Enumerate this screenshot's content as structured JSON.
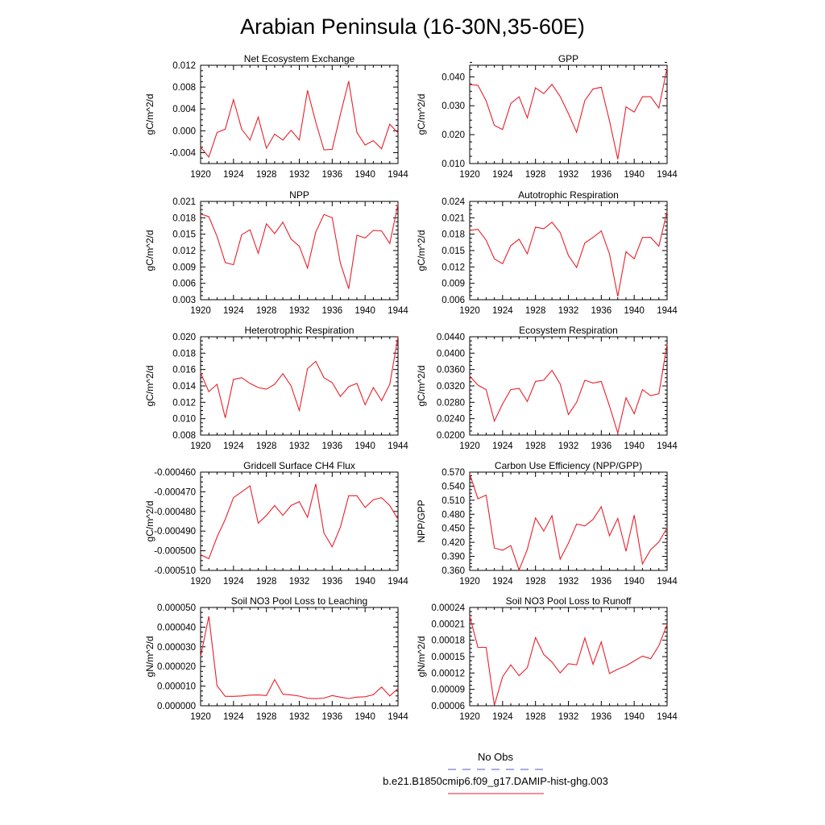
{
  "title": "Arabian Peninsula (16-30N,35-60E)",
  "legend": {
    "entries": [
      {
        "label": "No Obs",
        "color": "#5555cc",
        "style": "dashed"
      },
      {
        "label": "b.e21.B1850cmip6.f09_g17.DAMIP-hist-ghg.003",
        "color": "#e8202a",
        "style": "solid"
      }
    ]
  },
  "colors": {
    "series": "#e8202a",
    "axis": "#000000"
  },
  "chart_data": [
    {
      "type": "line",
      "title": "Net Ecosystem Exchange",
      "ylabel": "gC/m^2/d",
      "xlim": [
        1920,
        1944
      ],
      "ylim": [
        -0.006,
        0.012
      ],
      "xticks": [
        "1920",
        "1924",
        "1928",
        "1932",
        "1936",
        "1940",
        "1944"
      ],
      "yticks": [
        "-0.004",
        "0.000",
        "0.004",
        "0.008",
        "0.012"
      ],
      "x": [
        1920,
        1921,
        1922,
        1923,
        1924,
        1925,
        1926,
        1927,
        1928,
        1929,
        1930,
        1931,
        1932,
        1933,
        1934,
        1935,
        1936,
        1937,
        1938,
        1939,
        1940,
        1941,
        1942,
        1943,
        1944
      ],
      "series": [
        {
          "values": [
            -0.003,
            -0.0048,
            -0.0003,
            0.0003,
            0.0057,
            0.0003,
            -0.0017,
            0.0025,
            -0.0032,
            -0.0006,
            -0.0017,
            0.0001,
            -0.0017,
            0.0074,
            0.0016,
            -0.0035,
            -0.0034,
            0.003,
            0.0091,
            -0.0003,
            -0.0026,
            -0.0018,
            -0.0033,
            0.0012,
            -0.0004
          ]
        }
      ]
    },
    {
      "type": "line",
      "title": "GPP",
      "ylabel": "gC/m^2/d",
      "xlim": [
        1920,
        1944
      ],
      "ylim": [
        0.01,
        0.044
      ],
      "xticks": [
        "1920",
        "1924",
        "1928",
        "1932",
        "1936",
        "1940",
        "1944"
      ],
      "yticks": [
        "0.010",
        "0.020",
        "0.030",
        "0.040"
      ],
      "x": [
        1920,
        1921,
        1922,
        1923,
        1924,
        1925,
        1926,
        1927,
        1928,
        1929,
        1930,
        1931,
        1932,
        1933,
        1934,
        1935,
        1936,
        1937,
        1938,
        1939,
        1940,
        1941,
        1942,
        1943,
        1944
      ],
      "series": [
        {
          "values": [
            0.0373,
            0.0371,
            0.0317,
            0.0232,
            0.0218,
            0.0308,
            0.0331,
            0.0258,
            0.0362,
            0.0342,
            0.0374,
            0.0332,
            0.0273,
            0.0208,
            0.0318,
            0.0358,
            0.0364,
            0.0248,
            0.0115,
            0.0296,
            0.0278,
            0.0331,
            0.0331,
            0.0292,
            0.0431
          ]
        }
      ]
    },
    {
      "type": "line",
      "title": "NPP",
      "ylabel": "gC/m^2/d",
      "xlim": [
        1920,
        1944
      ],
      "ylim": [
        0.003,
        0.021
      ],
      "xticks": [
        "1920",
        "1924",
        "1928",
        "1932",
        "1936",
        "1940",
        "1944"
      ],
      "yticks": [
        "0.003",
        "0.006",
        "0.009",
        "0.012",
        "0.015",
        "0.018",
        "0.021"
      ],
      "x": [
        1920,
        1921,
        1922,
        1923,
        1924,
        1925,
        1926,
        1927,
        1928,
        1929,
        1930,
        1931,
        1932,
        1933,
        1934,
        1935,
        1936,
        1937,
        1938,
        1939,
        1940,
        1941,
        1942,
        1943,
        1944
      ],
      "series": [
        {
          "values": [
            0.0187,
            0.0182,
            0.0146,
            0.0098,
            0.0094,
            0.0149,
            0.0158,
            0.0115,
            0.0169,
            0.0151,
            0.0172,
            0.0141,
            0.0128,
            0.0088,
            0.0154,
            0.0186,
            0.018,
            0.0097,
            0.005,
            0.0148,
            0.0143,
            0.0157,
            0.0156,
            0.0133,
            0.0205
          ]
        }
      ]
    },
    {
      "type": "line",
      "title": "Autotrophic Respiration",
      "ylabel": "gC/m^2/d",
      "xlim": [
        1920,
        1944
      ],
      "ylim": [
        0.006,
        0.024
      ],
      "xticks": [
        "1920",
        "1924",
        "1928",
        "1932",
        "1936",
        "1940",
        "1944"
      ],
      "yticks": [
        "0.006",
        "0.009",
        "0.012",
        "0.015",
        "0.018",
        "0.021",
        "0.024"
      ],
      "x": [
        1920,
        1921,
        1922,
        1923,
        1924,
        1925,
        1926,
        1927,
        1928,
        1929,
        1930,
        1931,
        1932,
        1933,
        1934,
        1935,
        1936,
        1937,
        1938,
        1939,
        1940,
        1941,
        1942,
        1943,
        1944
      ],
      "series": [
        {
          "values": [
            0.0187,
            0.0189,
            0.0169,
            0.0135,
            0.0126,
            0.0159,
            0.0171,
            0.0144,
            0.0193,
            0.019,
            0.0202,
            0.0183,
            0.0141,
            0.0119,
            0.0164,
            0.0174,
            0.0186,
            0.0144,
            0.0066,
            0.0148,
            0.0135,
            0.0174,
            0.0174,
            0.0158,
            0.0222
          ]
        }
      ]
    },
    {
      "type": "line",
      "title": "Heterotrophic Respiration",
      "ylabel": "gC/m^2/d",
      "xlim": [
        1920,
        1944
      ],
      "ylim": [
        0.008,
        0.02
      ],
      "xticks": [
        "1920",
        "1924",
        "1928",
        "1932",
        "1936",
        "1940",
        "1944"
      ],
      "yticks": [
        "0.008",
        "0.010",
        "0.012",
        "0.014",
        "0.016",
        "0.018",
        "0.020"
      ],
      "x": [
        1920,
        1921,
        1922,
        1923,
        1924,
        1925,
        1926,
        1927,
        1928,
        1929,
        1930,
        1931,
        1932,
        1933,
        1934,
        1935,
        1936,
        1937,
        1938,
        1939,
        1940,
        1941,
        1942,
        1943,
        1944
      ],
      "series": [
        {
          "values": [
            0.0156,
            0.0133,
            0.0142,
            0.0101,
            0.0148,
            0.015,
            0.0143,
            0.0138,
            0.0136,
            0.0142,
            0.0155,
            0.014,
            0.011,
            0.0161,
            0.017,
            0.015,
            0.0144,
            0.0127,
            0.0139,
            0.0143,
            0.0117,
            0.0138,
            0.0122,
            0.0142,
            0.02
          ]
        }
      ]
    },
    {
      "type": "line",
      "title": "Ecosystem Respiration",
      "ylabel": "gC/m^2/d",
      "xlim": [
        1920,
        1944
      ],
      "ylim": [
        0.02,
        0.044
      ],
      "xticks": [
        "1920",
        "1924",
        "1928",
        "1932",
        "1936",
        "1940",
        "1944"
      ],
      "yticks": [
        "0.0200",
        "0.0240",
        "0.0280",
        "0.0320",
        "0.0360",
        "0.0400",
        "0.0440"
      ],
      "x": [
        1920,
        1921,
        1922,
        1923,
        1924,
        1925,
        1926,
        1927,
        1928,
        1929,
        1930,
        1931,
        1932,
        1933,
        1934,
        1935,
        1936,
        1937,
        1938,
        1939,
        1940,
        1941,
        1942,
        1943,
        1944
      ],
      "series": [
        {
          "values": [
            0.0344,
            0.0322,
            0.0311,
            0.0234,
            0.0276,
            0.0311,
            0.0314,
            0.0282,
            0.0331,
            0.0334,
            0.0358,
            0.0325,
            0.025,
            0.028,
            0.0334,
            0.0327,
            0.0331,
            0.0271,
            0.0205,
            0.0291,
            0.0252,
            0.0311,
            0.0296,
            0.0301,
            0.0422
          ]
        }
      ]
    },
    {
      "type": "line",
      "title": "Gridcell Surface CH4 Flux",
      "ylabel": "gC/m^2/d",
      "xlim": [
        1920,
        1944
      ],
      "ylim": [
        -0.00051,
        -0.00046
      ],
      "xticks": [
        "1920",
        "1924",
        "1928",
        "1932",
        "1936",
        "1940",
        "1944"
      ],
      "yticks": [
        "-0.000510",
        "-0.000500",
        "-0.000490",
        "-0.000480",
        "-0.000470",
        "-0.000460"
      ],
      "x": [
        1920,
        1921,
        1922,
        1923,
        1924,
        1925,
        1926,
        1927,
        1928,
        1929,
        1930,
        1931,
        1932,
        1933,
        1934,
        1935,
        1936,
        1937,
        1938,
        1939,
        1940,
        1941,
        1942,
        1943,
        1944
      ],
      "series": [
        {
          "values": [
            -0.000502,
            -0.000504,
            -0.000493,
            -0.000484,
            -0.000473,
            -0.00047,
            -0.000467,
            -0.000486,
            -0.000482,
            -0.000477,
            -0.000482,
            -0.000477,
            -0.000475,
            -0.000483,
            -0.000466,
            -0.000491,
            -0.000498,
            -0.000488,
            -0.000472,
            -0.000472,
            -0.000478,
            -0.000474,
            -0.000473,
            -0.000477,
            -0.000484
          ]
        }
      ]
    },
    {
      "type": "line",
      "title": "Carbon Use Efficiency (NPP/GPP)",
      "ylabel": "NPP/GPP",
      "xlim": [
        1920,
        1944
      ],
      "ylim": [
        0.36,
        0.57
      ],
      "xticks": [
        "1920",
        "1924",
        "1928",
        "1932",
        "1936",
        "1940",
        "1944"
      ],
      "yticks": [
        "0.360",
        "0.390",
        "0.420",
        "0.450",
        "0.480",
        "0.510",
        "0.540",
        "0.570"
      ],
      "x": [
        1920,
        1921,
        1922,
        1923,
        1924,
        1925,
        1926,
        1927,
        1928,
        1929,
        1930,
        1931,
        1932,
        1933,
        1934,
        1935,
        1936,
        1937,
        1938,
        1939,
        1940,
        1941,
        1942,
        1943,
        1944
      ],
      "series": [
        {
          "values": [
            0.566,
            0.513,
            0.521,
            0.408,
            0.403,
            0.413,
            0.361,
            0.405,
            0.472,
            0.444,
            0.477,
            0.384,
            0.418,
            0.459,
            0.455,
            0.469,
            0.496,
            0.434,
            0.471,
            0.401,
            0.478,
            0.374,
            0.404,
            0.421,
            0.451
          ]
        }
      ]
    },
    {
      "type": "line",
      "title": "Soil NO3 Pool Loss to Leaching",
      "ylabel": "gN/m^2/d",
      "xlim": [
        1920,
        1944
      ],
      "ylim": [
        0,
        5e-05
      ],
      "xticks": [
        "1920",
        "1924",
        "1928",
        "1932",
        "1936",
        "1940",
        "1944"
      ],
      "yticks": [
        "0.000000",
        "0.000010",
        "0.000020",
        "0.000030",
        "0.000040",
        "0.000050"
      ],
      "x": [
        1920,
        1921,
        1922,
        1923,
        1924,
        1925,
        1926,
        1927,
        1928,
        1929,
        1930,
        1931,
        1932,
        1933,
        1934,
        1935,
        1936,
        1937,
        1938,
        1939,
        1940,
        1941,
        1942,
        1943,
        1944
      ],
      "series": [
        {
          "values": [
            2.5e-05,
            4.55e-05,
            1.02e-05,
            4.8e-06,
            4.8e-06,
            5e-06,
            5.4e-06,
            5.5e-06,
            5.2e-06,
            1.33e-05,
            5.9e-06,
            5.5e-06,
            4.9e-06,
            3.8e-06,
            3.6e-06,
            3.9e-06,
            5.2e-06,
            4.4e-06,
            3.7e-06,
            4.4e-06,
            4.6e-06,
            5.6e-06,
            9.5e-06,
            5e-06,
            8.8e-06
          ]
        }
      ]
    },
    {
      "type": "line",
      "title": "Soil NO3 Pool Loss to Runoff",
      "ylabel": "gN/m^2/d",
      "xlim": [
        1920,
        1944
      ],
      "ylim": [
        6e-05,
        0.00024
      ],
      "xticks": [
        "1920",
        "1924",
        "1928",
        "1932",
        "1936",
        "1940",
        "1944"
      ],
      "yticks": [
        "0.00006",
        "0.00009",
        "0.00012",
        "0.00015",
        "0.00018",
        "0.00021",
        "0.00024"
      ],
      "x": [
        1920,
        1921,
        1922,
        1923,
        1924,
        1925,
        1926,
        1927,
        1928,
        1929,
        1930,
        1931,
        1932,
        1933,
        1934,
        1935,
        1936,
        1937,
        1938,
        1939,
        1940,
        1941,
        1942,
        1943,
        1944
      ],
      "series": [
        {
          "values": [
            0.000224,
            0.000167,
            0.000167,
            6.1e-05,
            0.000113,
            0.000135,
            0.000115,
            0.00013,
            0.000185,
            0.000154,
            0.00014,
            0.00012,
            0.000137,
            0.000135,
            0.000184,
            0.000136,
            0.000177,
            0.000119,
            0.000127,
            0.000133,
            0.000142,
            0.000151,
            0.000146,
            0.00017,
            0.000209
          ]
        }
      ]
    }
  ]
}
